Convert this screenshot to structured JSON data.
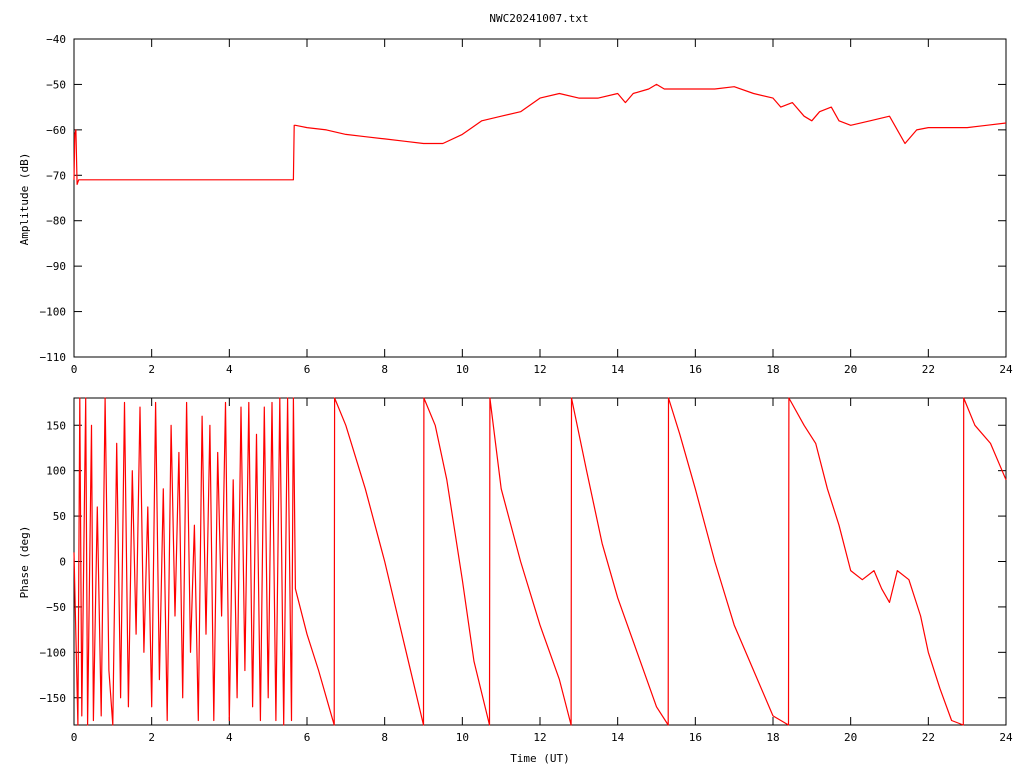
{
  "title": "NWC20241007.txt",
  "colors": {
    "trace": "#ff0000",
    "axes": "#000000",
    "background": "#ffffff"
  },
  "chart_data": [
    {
      "type": "line",
      "ylabel": "Amplitude (dB)",
      "xlabel": "",
      "xlim": [
        0,
        24
      ],
      "ylim": [
        -110,
        -40
      ],
      "xticks": [
        0,
        2,
        4,
        6,
        8,
        10,
        12,
        14,
        16,
        18,
        20,
        22,
        24
      ],
      "yticks": [
        -40,
        -50,
        -60,
        -70,
        -80,
        -90,
        -100,
        -110
      ],
      "grid": false,
      "series": [
        {
          "color": "#ff0000",
          "x": [
            0,
            0.02,
            0.05,
            0.08,
            0.12,
            0.2,
            0.5,
            1,
            1.5,
            2,
            2.5,
            3,
            3.5,
            4,
            4.5,
            5,
            5.5,
            5.65,
            5.67,
            5.7,
            6,
            6.5,
            7,
            7.5,
            8,
            8.5,
            9,
            9.5,
            10,
            10.5,
            11,
            11.5,
            12,
            12.5,
            13,
            13.5,
            14,
            14.2,
            14.4,
            14.8,
            15,
            15.2,
            15.5,
            16,
            16.5,
            17,
            17.5,
            18,
            18.2,
            18.5,
            18.8,
            19,
            19.2,
            19.5,
            19.7,
            20,
            20.5,
            21,
            21.2,
            21.4,
            21.7,
            22,
            22.5,
            23,
            23.5,
            24
          ],
          "y": [
            -71,
            -61,
            -60,
            -72,
            -71,
            -71,
            -71,
            -71,
            -71,
            -71,
            -71,
            -71,
            -71,
            -71,
            -71,
            -71,
            -71,
            -71,
            -59,
            -59,
            -59.5,
            -60,
            -61,
            -61.5,
            -62,
            -62.5,
            -63,
            -63,
            -61,
            -58,
            -57,
            -56,
            -53,
            -52,
            -53,
            -53,
            -52,
            -54,
            -52,
            -51,
            -50,
            -51,
            -51,
            -51,
            -51,
            -50.5,
            -52,
            -53,
            -55,
            -54,
            -57,
            -58,
            -56,
            -55,
            -58,
            -59,
            -58,
            -57,
            -60,
            -63,
            -60,
            -59.5,
            -59.5,
            -59.5,
            -59,
            -58.5
          ]
        }
      ]
    },
    {
      "type": "line",
      "ylabel": "Phase (deg)",
      "xlabel": "Time (UT)",
      "xlim": [
        0,
        24
      ],
      "ylim": [
        -180,
        180
      ],
      "xticks": [
        0,
        2,
        4,
        6,
        8,
        10,
        12,
        14,
        16,
        18,
        20,
        22,
        24
      ],
      "yticks": [
        150,
        100,
        50,
        0,
        -50,
        -100,
        -150
      ],
      "grid": false,
      "series": [
        {
          "color": "#ff0000",
          "x": [
            0,
            0.1,
            0.15,
            0.2,
            0.3,
            0.35,
            0.45,
            0.5,
            0.6,
            0.7,
            0.8,
            0.9,
            1.0,
            1.1,
            1.2,
            1.3,
            1.4,
            1.5,
            1.6,
            1.7,
            1.8,
            1.9,
            2.0,
            2.1,
            2.2,
            2.3,
            2.4,
            2.5,
            2.6,
            2.7,
            2.8,
            2.9,
            3.0,
            3.1,
            3.2,
            3.3,
            3.4,
            3.5,
            3.6,
            3.7,
            3.8,
            3.9,
            4.0,
            4.1,
            4.2,
            4.3,
            4.4,
            4.5,
            4.6,
            4.7,
            4.8,
            4.9,
            5.0,
            5.1,
            5.2,
            5.3,
            5.4,
            5.5,
            5.6,
            5.65,
            5.7,
            6.0,
            6.3,
            6.6,
            6.7,
            6.71,
            7.0,
            7.5,
            8.0,
            8.5,
            9.0,
            9.01,
            9.3,
            9.6,
            10.0,
            10.3,
            10.7,
            10.71,
            11.0,
            11.5,
            12.0,
            12.5,
            12.8,
            12.81,
            13.2,
            13.6,
            14.0,
            14.5,
            15.0,
            15.3,
            15.31,
            15.6,
            16.0,
            16.5,
            17.0,
            17.5,
            18.0,
            18.4,
            18.41,
            18.8,
            19.1,
            19.4,
            19.7,
            20.0,
            20.3,
            20.6,
            20.8,
            21.0,
            21.2,
            21.5,
            21.8,
            22.0,
            22.3,
            22.6,
            22.9,
            22.91,
            23.2,
            23.6,
            24.0
          ],
          "y": [
            10,
            -180,
            180,
            -170,
            180,
            -180,
            150,
            -175,
            60,
            -170,
            180,
            -120,
            -180,
            130,
            -150,
            175,
            -160,
            100,
            -80,
            170,
            -100,
            60,
            -160,
            175,
            -130,
            80,
            -175,
            150,
            -60,
            120,
            -150,
            175,
            -100,
            40,
            -175,
            160,
            -80,
            150,
            -175,
            120,
            -60,
            175,
            -175,
            90,
            -150,
            170,
            -120,
            175,
            -160,
            140,
            -175,
            170,
            -150,
            175,
            -175,
            180,
            -180,
            180,
            -175,
            180,
            -30,
            -80,
            -120,
            -165,
            -180,
            180,
            150,
            80,
            0,
            -90,
            -180,
            180,
            150,
            90,
            -20,
            -110,
            -180,
            180,
            80,
            0,
            -70,
            -130,
            -180,
            180,
            100,
            20,
            -40,
            -100,
            -160,
            -180,
            180,
            140,
            80,
            0,
            -70,
            -120,
            -170,
            -180,
            180,
            150,
            130,
            80,
            40,
            -10,
            -20,
            -10,
            -30,
            -45,
            -10,
            -20,
            -60,
            -100,
            -140,
            -175,
            -180,
            180,
            150,
            130,
            90
          ]
        }
      ]
    }
  ]
}
